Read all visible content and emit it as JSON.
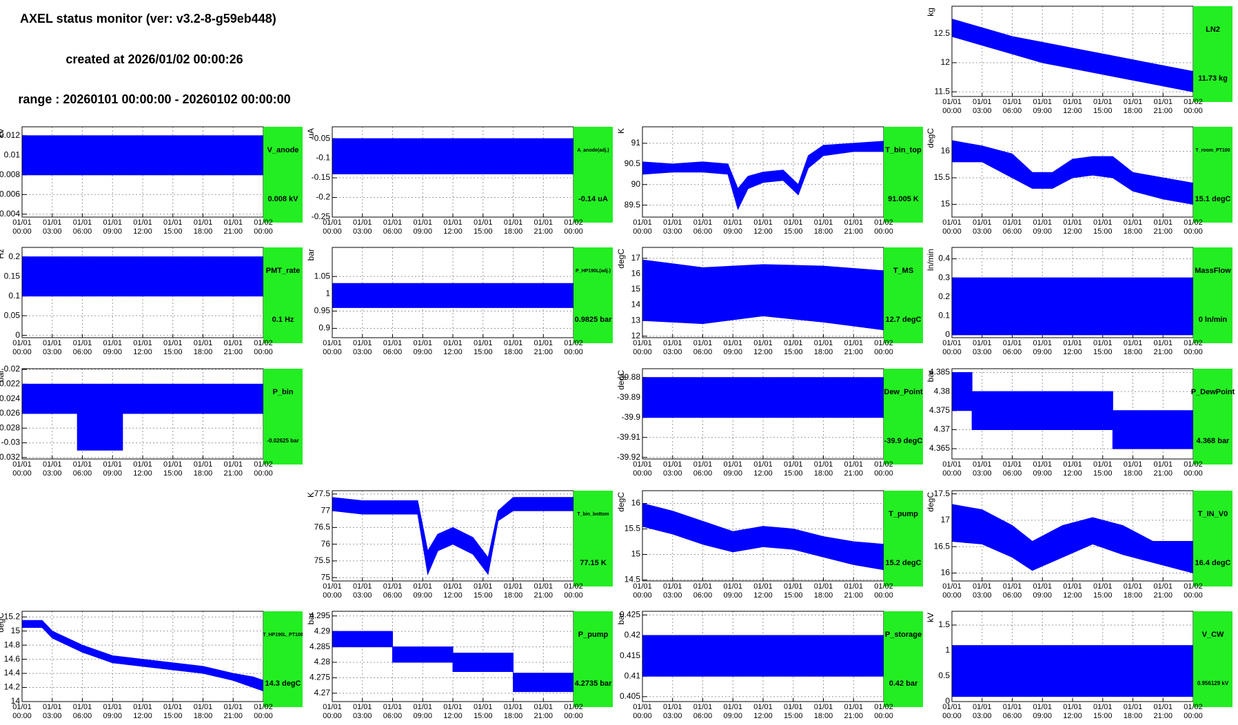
{
  "header": {
    "title": "AXEL status monitor (ver: v3.2-8-g59eb448)",
    "created": "created at 2026/01/02 00:00:26",
    "range": "range : 20260101 00:00:00 - 20260102 00:00:00"
  },
  "time_axis": {
    "xlim": [
      0,
      24
    ],
    "xticks": [
      {
        "value": 0,
        "label": "01/01\n00:00"
      },
      {
        "value": 3,
        "label": "01/01\n03:00"
      },
      {
        "value": 6,
        "label": "01/01\n06:00"
      },
      {
        "value": 9,
        "label": "01/01\n09:00"
      },
      {
        "value": 12,
        "label": "01/01\n12:00"
      },
      {
        "value": 15,
        "label": "01/01\n15:00"
      },
      {
        "value": 18,
        "label": "01/01\n18:00"
      },
      {
        "value": 21,
        "label": "01/01\n21:00"
      },
      {
        "value": 24,
        "label": "01/02\n00:00"
      }
    ]
  },
  "chart_data": [
    {
      "type": "band",
      "title": "LN2",
      "status": "11.73 kg",
      "ylabel": "kg",
      "color": "#0000ff",
      "ylim": [
        11.42,
        12.97
      ],
      "yticks": [
        11.5,
        12,
        12.5
      ],
      "x": [
        0,
        3,
        6,
        9,
        12,
        15,
        18,
        21,
        24
      ],
      "high": [
        12.75,
        12.6,
        12.45,
        12.35,
        12.25,
        12.15,
        12.05,
        11.95,
        11.85
      ],
      "low": [
        12.45,
        12.3,
        12.15,
        12.0,
        11.9,
        11.8,
        11.7,
        11.6,
        11.5
      ]
    },
    {
      "type": "band",
      "title": "V_anode",
      "status": "0.008 kV",
      "ylabel": "kV",
      "color": "#0000ff",
      "ylim": [
        0.0037,
        0.0129
      ],
      "yticks": [
        0.004,
        0.006,
        0.008,
        0.01,
        0.012
      ],
      "x": [
        0,
        24
      ],
      "high": [
        0.012,
        0.012
      ],
      "low": [
        0.008,
        0.008
      ]
    },
    {
      "type": "band",
      "title": "A_anode(adj.)",
      "status": "-0.14 uA",
      "ylabel": "uA",
      "color": "#0000ff",
      "ylim": [
        -0.25,
        -0.02
      ],
      "yticks": [
        -0.25,
        -0.2,
        -0.15,
        -0.1,
        -0.05
      ],
      "x": [
        0,
        24
      ],
      "high": [
        -0.05,
        -0.05
      ],
      "low": [
        -0.14,
        -0.14
      ]
    },
    {
      "type": "band",
      "title": "T_bin_top",
      "status": "91.005 K",
      "ylabel": "K",
      "color": "#0000ff",
      "ylim": [
        89.21,
        91.4
      ],
      "yticks": [
        89.5,
        90,
        90.5,
        91
      ],
      "x": [
        0,
        3,
        6,
        8.5,
        9.5,
        10.5,
        12,
        14,
        15.5,
        16.5,
        18,
        21,
        24
      ],
      "high": [
        90.55,
        90.5,
        90.55,
        90.5,
        89.9,
        90.2,
        90.3,
        90.35,
        90.0,
        90.7,
        90.95,
        91.0,
        91.05
      ],
      "low": [
        90.25,
        90.3,
        90.3,
        90.25,
        89.4,
        89.9,
        90.05,
        90.1,
        89.75,
        90.4,
        90.7,
        90.8,
        90.8
      ]
    },
    {
      "type": "band",
      "title": "T_room_PT100",
      "status": "15.1 degC",
      "ylabel": "degC",
      "color": "#0000ff",
      "ylim": [
        14.76,
        16.46
      ],
      "yticks": [
        15,
        15.5,
        16
      ],
      "x": [
        0,
        3,
        6,
        8,
        10,
        12,
        14,
        16,
        18,
        21,
        24
      ],
      "high": [
        16.2,
        16.1,
        15.95,
        15.6,
        15.6,
        15.85,
        15.9,
        15.9,
        15.6,
        15.5,
        15.4
      ],
      "low": [
        15.8,
        15.8,
        15.5,
        15.3,
        15.3,
        15.5,
        15.55,
        15.5,
        15.25,
        15.1,
        15.0
      ]
    },
    {
      "type": "band",
      "title": "PMT_rate",
      "status": "0.1 Hz",
      "ylabel": "Hz",
      "color": "#0000ff",
      "ylim": [
        -0.006,
        0.224
      ],
      "yticks": [
        0,
        0.05,
        0.1,
        0.15,
        0.2
      ],
      "x": [
        0,
        24
      ],
      "high": [
        0.2,
        0.2
      ],
      "low": [
        0.1,
        0.1
      ]
    },
    {
      "type": "band",
      "title": "P_HP190L(adj.)",
      "status": "0.9825 bar",
      "ylabel": "bar",
      "color": "#0000ff",
      "ylim": [
        0.873,
        1.134
      ],
      "yticks": [
        0.9,
        0.95,
        1,
        1.05
      ],
      "x": [
        0,
        24
      ],
      "high": [
        1.03,
        1.03
      ],
      "low": [
        0.96,
        0.96
      ]
    },
    {
      "type": "band",
      "title": "T_MS",
      "status": "12.7 degC",
      "ylabel": "degC",
      "color": "#0000ff",
      "ylim": [
        11.9,
        17.7
      ],
      "yticks": [
        12,
        13,
        14,
        15,
        16,
        17
      ],
      "x": [
        0,
        6,
        12,
        18,
        24
      ],
      "high": [
        16.9,
        16.4,
        16.6,
        16.5,
        16.2
      ],
      "low": [
        13.0,
        12.8,
        13.3,
        12.9,
        12.4
      ]
    },
    {
      "type": "band",
      "title": "MassFlow",
      "status": "0 ln/min",
      "ylabel": "ln/min",
      "color": "#0000ff",
      "ylim": [
        -0.015,
        0.46
      ],
      "yticks": [
        0,
        0.1,
        0.2,
        0.3,
        0.4
      ],
      "x": [
        0,
        24
      ],
      "high": [
        0.3,
        0.3
      ],
      "low": [
        0,
        0
      ]
    },
    {
      "type": "band",
      "title": "P_bin",
      "status": "-0.02625 bar",
      "ylabel": "bar",
      "color": "#0000ff",
      "ylim": [
        -0.0322,
        -0.0199
      ],
      "yticks": [
        -0.032,
        -0.03,
        -0.028,
        -0.026,
        -0.024,
        -0.022,
        -0.02
      ],
      "x": [
        0,
        5.5,
        5.5,
        10,
        10,
        24
      ],
      "high": [
        -0.022,
        -0.022,
        -0.022,
        -0.022,
        -0.022,
        -0.022
      ],
      "low": [
        -0.026,
        -0.026,
        -0.031,
        -0.031,
        -0.026,
        -0.026
      ]
    },
    {
      "type": "band",
      "title": "Dew_Point",
      "status": "-39.9 degC",
      "ylabel": "degC",
      "color": "#0000ff",
      "ylim": [
        -39.9208,
        -39.8756
      ],
      "yticks": [
        -39.92,
        -39.91,
        -39.9,
        -39.89,
        -39.88
      ],
      "x": [
        0,
        24
      ],
      "high": [
        -39.88,
        -39.88
      ],
      "low": [
        -39.9,
        -39.9
      ]
    },
    {
      "type": "band",
      "title": "P_DewPoint",
      "status": "4.368 bar",
      "ylabel": "bar",
      "color": "#0000ff",
      "ylim": [
        4.3623,
        4.386
      ],
      "yticks": [
        4.365,
        4.37,
        4.375,
        4.38,
        4.385
      ],
      "x": [
        0,
        2,
        2,
        16,
        16,
        24
      ],
      "high": [
        4.385,
        4.385,
        4.38,
        4.38,
        4.375,
        4.375
      ],
      "low": [
        4.375,
        4.375,
        4.37,
        4.37,
        4.365,
        4.365
      ]
    },
    {
      "type": "band",
      "title": "T_bin_bottom",
      "status": "77.15 K",
      "ylabel": "K",
      "color": "#0000ff",
      "ylim": [
        74.9,
        77.6
      ],
      "yticks": [
        75,
        75.5,
        76,
        76.5,
        77,
        77.5
      ],
      "x": [
        0,
        3,
        6,
        8.5,
        9.5,
        10.5,
        12,
        14,
        15.5,
        16.5,
        18,
        21,
        24
      ],
      "high": [
        77.4,
        77.3,
        77.3,
        77.3,
        75.8,
        76.3,
        76.5,
        76.2,
        75.6,
        77.0,
        77.4,
        77.4,
        77.4
      ],
      "low": [
        77.0,
        76.9,
        76.9,
        76.9,
        75.1,
        75.8,
        76.0,
        75.7,
        75.1,
        76.7,
        77.0,
        77.0,
        77.0
      ]
    },
    {
      "type": "band",
      "title": "T_pump",
      "status": "15.2 degC",
      "ylabel": "degC",
      "color": "#0000ff",
      "ylim": [
        14.48,
        16.25
      ],
      "yticks": [
        14.5,
        15,
        15.5,
        16
      ],
      "x": [
        0,
        3,
        6,
        9,
        12,
        15,
        18,
        21,
        24
      ],
      "high": [
        16.0,
        15.85,
        15.65,
        15.45,
        15.55,
        15.5,
        15.35,
        15.25,
        15.2
      ],
      "low": [
        15.55,
        15.4,
        15.2,
        15.05,
        15.15,
        15.1,
        14.95,
        14.8,
        14.7
      ]
    },
    {
      "type": "band",
      "title": "T_IN_V0",
      "status": "16.4 degC",
      "ylabel": "degC",
      "color": "#0000ff",
      "ylim": [
        15.85,
        17.56
      ],
      "yticks": [
        16,
        16.5,
        17,
        17.5
      ],
      "x": [
        0,
        3,
        6,
        8,
        11,
        14,
        17,
        20,
        24
      ],
      "high": [
        17.3,
        17.2,
        16.9,
        16.6,
        16.9,
        17.05,
        16.9,
        16.6,
        16.6
      ],
      "low": [
        16.6,
        16.55,
        16.3,
        16.05,
        16.3,
        16.55,
        16.35,
        16.2,
        16.0
      ]
    },
    {
      "type": "band",
      "title": "T_HP190L_PT100",
      "status": "14.3 degC",
      "ylabel": "degC",
      "color": "#0000ff",
      "ylim": [
        14,
        15.28
      ],
      "yticks": [
        14,
        14.2,
        14.4,
        14.6,
        14.8,
        15,
        15.2
      ],
      "x": [
        0,
        2,
        3,
        6,
        9,
        12,
        15,
        18,
        21,
        23,
        24
      ],
      "high": [
        15.15,
        15.15,
        15.0,
        14.8,
        14.65,
        14.6,
        14.55,
        14.5,
        14.4,
        14.35,
        14.3
      ],
      "low": [
        15.05,
        15.05,
        14.9,
        14.7,
        14.55,
        14.5,
        14.45,
        14.4,
        14.3,
        14.2,
        14.15
      ]
    },
    {
      "type": "band",
      "title": "P_pump",
      "status": "4.2735 bar",
      "ylabel": "bar",
      "color": "#0000ff",
      "ylim": [
        4.2673,
        4.2965
      ],
      "yticks": [
        4.27,
        4.275,
        4.28,
        4.285,
        4.29,
        4.295
      ],
      "x": [
        0,
        6,
        6,
        12,
        12,
        18,
        18,
        24
      ],
      "high": [
        4.29,
        4.29,
        4.285,
        4.285,
        4.283,
        4.283,
        4.2765,
        4.2765
      ],
      "low": [
        4.285,
        4.285,
        4.28,
        4.28,
        4.277,
        4.277,
        4.2705,
        4.2705
      ]
    },
    {
      "type": "band",
      "title": "P_storage",
      "status": "0.42 bar",
      "ylabel": "bar",
      "color": "#0000ff",
      "ylim": [
        0.4038,
        0.4259
      ],
      "yticks": [
        0.405,
        0.41,
        0.415,
        0.42,
        0.425
      ],
      "x": [
        0,
        24
      ],
      "high": [
        0.42,
        0.42
      ],
      "low": [
        0.41,
        0.41
      ]
    },
    {
      "type": "band",
      "title": "V_CW",
      "status": "0.956129 kV",
      "ylabel": "kV",
      "color": "#0000ff",
      "ylim": [
        0,
        1.77
      ],
      "yticks": [
        0,
        0.5,
        1,
        1.5
      ],
      "x": [
        0,
        24
      ],
      "high": [
        1.1,
        1.1
      ],
      "low": [
        0.1,
        0.1
      ]
    }
  ]
}
